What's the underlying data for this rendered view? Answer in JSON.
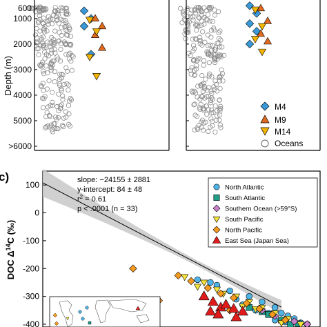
{
  "chart_data": [
    {
      "type": "scatter",
      "panel": "top-left",
      "ylabel": "Depth (m)",
      "y_tick_labels": [
        "600",
        "1000",
        "2000",
        "3000",
        "4000",
        "5000",
        ">6000"
      ],
      "y_ticks": [
        600,
        1000,
        2000,
        3000,
        4000,
        5000,
        6000
      ],
      "ylim": [
        6000,
        0
      ],
      "y_inverted": true,
      "series": [
        {
          "name": "M4",
          "marker": "diamond",
          "color": "#3a9ad9",
          "points": [
            [
              -25,
              700
            ],
            [
              -25,
              1000
            ],
            [
              -25,
              1300
            ],
            [
              -25,
              2400
            ]
          ]
        },
        {
          "name": "M9",
          "marker": "triangle-up",
          "color": "#e06a1f",
          "points": [
            [
              -20,
              1000
            ],
            [
              -20,
              1300
            ],
            [
              -20,
              1650
            ],
            [
              -20,
              2150
            ]
          ]
        },
        {
          "name": "M14",
          "marker": "triangle-down",
          "color": "#f2b400",
          "points": [
            [
              -20,
              1050
            ],
            [
              -20,
              1500
            ],
            [
              -20,
              2500
            ],
            [
              -20,
              3250
            ]
          ]
        },
        {
          "name": "Oceans",
          "marker": "circle-open",
          "color": "#8a8a8a",
          "points": []
        }
      ],
      "legend": "bottom-right"
    },
    {
      "type": "scatter",
      "panel": "top-right",
      "series": [
        {
          "name": "M4",
          "marker": "diamond",
          "color": "#3a9ad9",
          "points": [
            [
              -25,
              500
            ],
            [
              -25,
              800
            ],
            [
              -25,
              1200
            ],
            [
              -25,
              1500
            ],
            [
              -25,
              2000
            ]
          ]
        },
        {
          "name": "M9",
          "marker": "triangle-up",
          "color": "#e06a1f",
          "points": [
            [
              -20,
              600
            ],
            [
              -20,
              1100
            ],
            [
              -20,
              1600
            ],
            [
              -20,
              1900
            ]
          ]
        },
        {
          "name": "M14",
          "marker": "triangle-down",
          "color": "#f2b400",
          "points": [
            [
              -20,
              650
            ],
            [
              -20,
              1300
            ],
            [
              -20,
              1800
            ],
            [
              -20,
              2300
            ]
          ]
        },
        {
          "name": "Oceans",
          "marker": "circle-open",
          "color": "#8a8a8a",
          "points": []
        }
      ],
      "legend": "bottom-right"
    },
    {
      "type": "scatter",
      "panel": "c",
      "panel_label": "c)",
      "ylabel_prefix": "DOC Δ",
      "ylabel_sup": "14",
      "ylabel_suffix": "C (‰)",
      "ylim": [
        -410,
        150
      ],
      "y_ticks": [
        100,
        0,
        -100,
        -200,
        -300,
        -400
      ],
      "regression": {
        "slope_text": "slope: −24155 ± 2881",
        "intercept_text": "y-intercept: 84 ± 48",
        "r2_text": "r",
        "r2_sup": "2",
        "r2_value": " = 0.61",
        "p_text": "p < .0001 (n = 33)",
        "slope": -24155,
        "intercept": 84,
        "x_range": [
          -0.0005,
          0.02
        ]
      },
      "legend": "top-right",
      "series": [
        {
          "name": "North Atlantic",
          "marker": "circle",
          "color": "#4fb3e6",
          "points": [
            [
              0.011,
              -240
            ],
            [
              0.0125,
              -260
            ],
            [
              0.0135,
              -280
            ],
            [
              0.015,
              -300
            ],
            [
              0.016,
              -320
            ],
            [
              0.017,
              -340
            ],
            [
              0.0175,
              -360
            ],
            [
              0.018,
              -370
            ],
            [
              0.0185,
              -380
            ],
            [
              0.0145,
              -330
            ],
            [
              0.0155,
              -350
            ],
            [
              0.017,
              -385
            ],
            [
              0.019,
              -395
            ],
            [
              0.0195,
              -400
            ],
            [
              0.012,
              -250
            ],
            [
              0.014,
              -310
            ],
            [
              0.0165,
              -360
            ],
            [
              0.0178,
              -392
            ]
          ]
        },
        {
          "name": "South Atlantic",
          "marker": "square",
          "color": "#1f9e89",
          "points": [
            [
              0.015,
              -340
            ],
            [
              0.0165,
              -365
            ],
            [
              0.0175,
              -385
            ],
            [
              0.0188,
              -398
            ],
            [
              0.016,
              -355
            ],
            [
              0.0182,
              -402
            ]
          ]
        },
        {
          "name": "Southern Ocean (>59°S)",
          "marker": "diamond",
          "color": "#c77fc9",
          "points": [
            [
              0.017,
              -370
            ],
            [
              0.0185,
              -390
            ],
            [
              0.0195,
              -405
            ],
            [
              0.016,
              -350
            ]
          ]
        },
        {
          "name": "South Pacific",
          "marker": "triangle-down",
          "color": "#f5e23a",
          "points": [
            [
              0.01,
              -230
            ],
            [
              0.0115,
              -250
            ],
            [
              0.0125,
              -275
            ],
            [
              0.014,
              -300
            ],
            [
              0.015,
              -320
            ],
            [
              0.016,
              -340
            ],
            [
              0.017,
              -360
            ],
            [
              0.018,
              -380
            ],
            [
              0.013,
              -290
            ],
            [
              0.0145,
              -335
            ],
            [
              0.0175,
              -395
            ],
            [
              0.019,
              -400
            ],
            [
              0.011,
              -265
            ],
            [
              0.0155,
              -345
            ]
          ]
        },
        {
          "name": "North Pacific",
          "marker": "diamond",
          "color": "#f59a1f",
          "points": [
            [
              0.006,
              -200
            ],
            [
              0.008,
              -315
            ],
            [
              0.0095,
              -225
            ],
            [
              0.0105,
              -245
            ],
            [
              0.0118,
              -270
            ],
            [
              0.0128,
              -290
            ],
            [
              0.0138,
              -305
            ],
            [
              0.0148,
              -325
            ],
            [
              0.0158,
              -345
            ],
            [
              0.0168,
              -365
            ],
            [
              0.0178,
              -385
            ],
            [
              0.0135,
              -350
            ],
            [
              0.002,
              -405
            ]
          ]
        },
        {
          "name": "East Sea (Japan Sea)",
          "marker": "triangle-up",
          "color": "#e01b1b",
          "points": [
            [
              0.0115,
              -300
            ],
            [
              0.0122,
              -320
            ],
            [
              0.0128,
              -340
            ],
            [
              0.012,
              -355
            ],
            [
              0.0132,
              -330
            ],
            [
              0.0138,
              -345
            ],
            [
              0.0126,
              -365
            ],
            [
              0.0145,
              -355
            ],
            [
              0.014,
              -375
            ]
          ]
        }
      ]
    }
  ]
}
